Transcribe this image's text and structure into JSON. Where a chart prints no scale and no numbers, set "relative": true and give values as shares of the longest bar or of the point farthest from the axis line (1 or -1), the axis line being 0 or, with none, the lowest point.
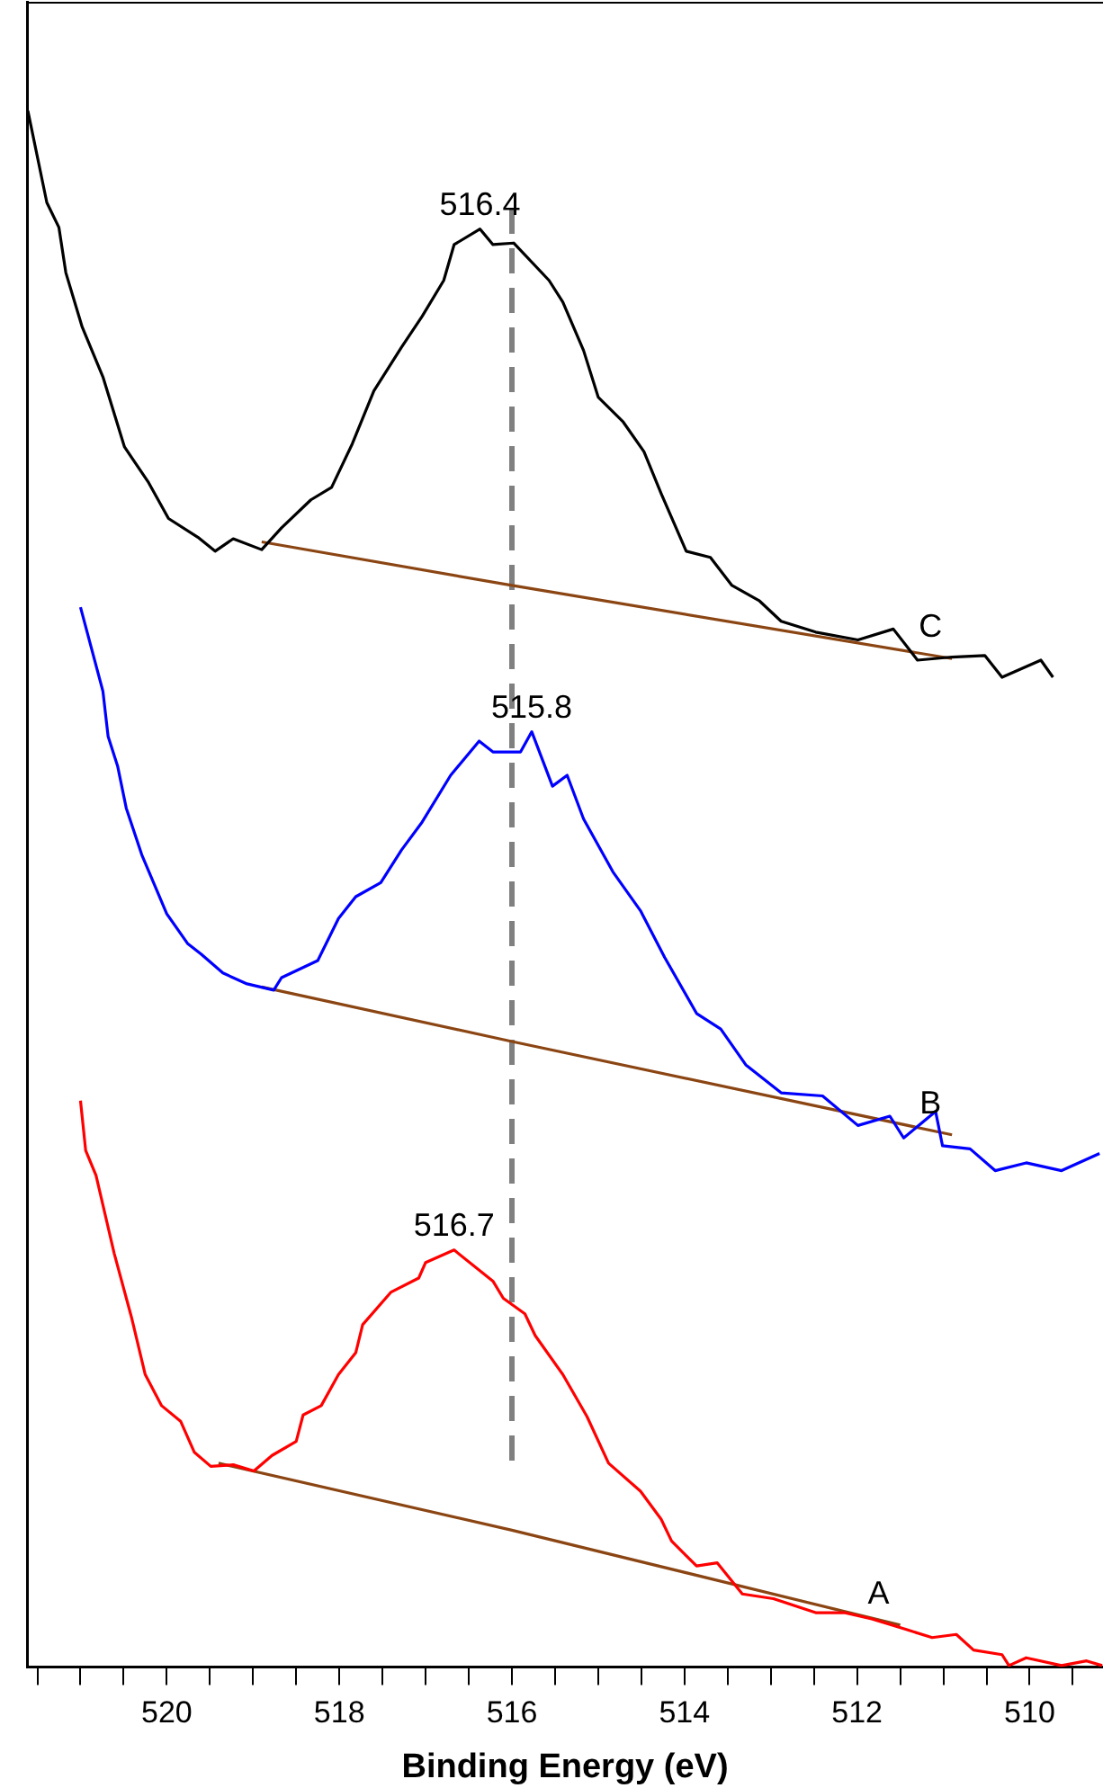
{
  "chart_data": {
    "type": "line",
    "xlabel": "Binding Energy (eV)",
    "relative": true,
    "xlim": [
      521.62,
      509.15
    ],
    "xticks": [
      {
        "value": 521.5,
        "label": null
      },
      {
        "value": 521,
        "label": null
      },
      {
        "value": 520.5,
        "label": null
      },
      520,
      {
        "value": 519.5,
        "label": null
      },
      {
        "value": 519,
        "label": null
      },
      {
        "value": 518.5,
        "label": null
      },
      518,
      {
        "value": 517.5,
        "label": null
      },
      {
        "value": 517,
        "label": null
      },
      {
        "value": 516.5,
        "label": null
      },
      516,
      {
        "value": 515.5,
        "label": null
      },
      {
        "value": 515,
        "label": null
      },
      {
        "value": 514.5,
        "label": null
      },
      514,
      {
        "value": 513.5,
        "label": null
      },
      {
        "value": 513,
        "label": null
      },
      {
        "value": 512.5,
        "label": null
      },
      512,
      {
        "value": 511.5,
        "label": null
      },
      {
        "value": 511,
        "label": null
      },
      {
        "value": 510.5,
        "label": null
      },
      510,
      {
        "value": 509.5,
        "label": null
      }
    ],
    "tick_labels": "x",
    "grid": false,
    "legend": false,
    "marker": "none",
    "line_style": "solid",
    "series": [
      {
        "color": "#000000",
        "x": [
          521.61,
          521.39,
          521.25,
          521.17,
          520.98,
          520.74,
          520.49,
          520.21,
          519.98,
          519.64,
          519.44,
          519.23,
          518.9,
          518.67,
          518.33,
          518.09,
          517.85,
          517.6,
          517.28,
          517.04,
          516.79,
          516.67,
          516.37,
          516.22,
          515.98,
          515.57,
          515.41,
          515.17,
          515.0,
          514.71,
          514.47,
          514.27,
          513.98,
          513.7,
          513.45,
          513.13,
          512.88,
          512.48,
          511.99,
          511.58,
          511.3,
          510.9,
          510.52,
          510.32,
          509.87,
          509.73
        ],
        "values": [
          1.0,
          0.941,
          0.925,
          0.896,
          0.861,
          0.829,
          0.784,
          0.761,
          0.738,
          0.726,
          0.717,
          0.725,
          0.718,
          0.732,
          0.75,
          0.758,
          0.786,
          0.82,
          0.848,
          0.868,
          0.891,
          0.914,
          0.924,
          0.914,
          0.915,
          0.891,
          0.877,
          0.846,
          0.816,
          0.8,
          0.781,
          0.754,
          0.717,
          0.713,
          0.695,
          0.685,
          0.672,
          0.665,
          0.66,
          0.667,
          0.647,
          0.649,
          0.65,
          0.636,
          0.647,
          0.636
        ]
      },
      {
        "color": "#0000ff",
        "x": [
          521.0,
          520.74,
          520.68,
          520.57,
          520.47,
          520.29,
          520.0,
          519.76,
          519.6,
          519.35,
          519.07,
          518.76,
          518.67,
          518.25,
          518.01,
          517.81,
          517.52,
          517.28,
          517.04,
          516.71,
          516.38,
          516.22,
          515.9,
          515.77,
          515.53,
          515.36,
          515.17,
          514.83,
          514.51,
          514.23,
          513.86,
          513.58,
          513.29,
          512.88,
          512.4,
          511.99,
          511.62,
          511.46,
          511.09,
          511.01,
          510.69,
          510.4,
          510.04,
          509.63,
          509.19
        ],
        "values": [
          0.681,
          0.627,
          0.598,
          0.579,
          0.552,
          0.522,
          0.484,
          0.465,
          0.458,
          0.446,
          0.439,
          0.435,
          0.443,
          0.454,
          0.481,
          0.495,
          0.504,
          0.525,
          0.543,
          0.573,
          0.595,
          0.588,
          0.588,
          0.601,
          0.566,
          0.573,
          0.545,
          0.511,
          0.486,
          0.456,
          0.42,
          0.41,
          0.387,
          0.369,
          0.367,
          0.348,
          0.354,
          0.34,
          0.357,
          0.335,
          0.333,
          0.319,
          0.324,
          0.319,
          0.33
        ]
      },
      {
        "color": "#ff0000",
        "x": [
          521.0,
          520.94,
          520.82,
          520.61,
          520.41,
          520.25,
          520.06,
          519.84,
          519.68,
          519.49,
          519.23,
          518.99,
          518.78,
          518.5,
          518.42,
          518.21,
          518.01,
          517.81,
          517.73,
          517.4,
          517.08,
          517.0,
          516.67,
          516.22,
          516.1,
          515.85,
          515.73,
          515.41,
          515.13,
          514.88,
          514.51,
          514.27,
          514.15,
          513.86,
          513.62,
          513.33,
          512.97,
          512.48,
          512.15,
          511.83,
          511.42,
          511.13,
          510.85,
          510.65,
          510.32,
          510.24,
          510.04,
          509.63,
          509.34,
          509.16
        ],
        "values": [
          0.364,
          0.332,
          0.316,
          0.266,
          0.225,
          0.188,
          0.168,
          0.158,
          0.138,
          0.129,
          0.13,
          0.126,
          0.136,
          0.145,
          0.162,
          0.168,
          0.188,
          0.202,
          0.22,
          0.241,
          0.25,
          0.26,
          0.268,
          0.248,
          0.237,
          0.227,
          0.213,
          0.188,
          0.161,
          0.131,
          0.113,
          0.095,
          0.081,
          0.065,
          0.067,
          0.047,
          0.044,
          0.035,
          0.035,
          0.031,
          0.024,
          0.019,
          0.021,
          0.011,
          0.008,
          0.001,
          0.006,
          0.001,
          0.004,
          0.001
        ]
      },
      {
        "color": "#8b4513",
        "x": [
          518.9,
          516.0,
          510.9
        ],
        "values": [
          0.723,
          0.695,
          0.648
        ]
      },
      {
        "color": "#8b4513",
        "x": [
          518.9,
          516.0,
          510.9
        ],
        "values": [
          0.437,
          0.402,
          0.342
        ]
      },
      {
        "color": "#8b4513",
        "x": [
          519.4,
          516.0,
          511.5
        ],
        "values": [
          0.131,
          0.088,
          0.027
        ]
      }
    ],
    "ref_lines": [
      {
        "axis": "x",
        "value": 516,
        "color": "#808080",
        "line_style": "dashed"
      }
    ],
    "annotations": [
      {
        "text": "516.4",
        "x": 516.37,
        "y": 0.924
      },
      {
        "text": "515.8",
        "x": 515.77,
        "y": 0.601
      },
      {
        "text": "516.7",
        "x": 516.67,
        "y": 0.268
      },
      "C",
      "B",
      "A"
    ]
  }
}
